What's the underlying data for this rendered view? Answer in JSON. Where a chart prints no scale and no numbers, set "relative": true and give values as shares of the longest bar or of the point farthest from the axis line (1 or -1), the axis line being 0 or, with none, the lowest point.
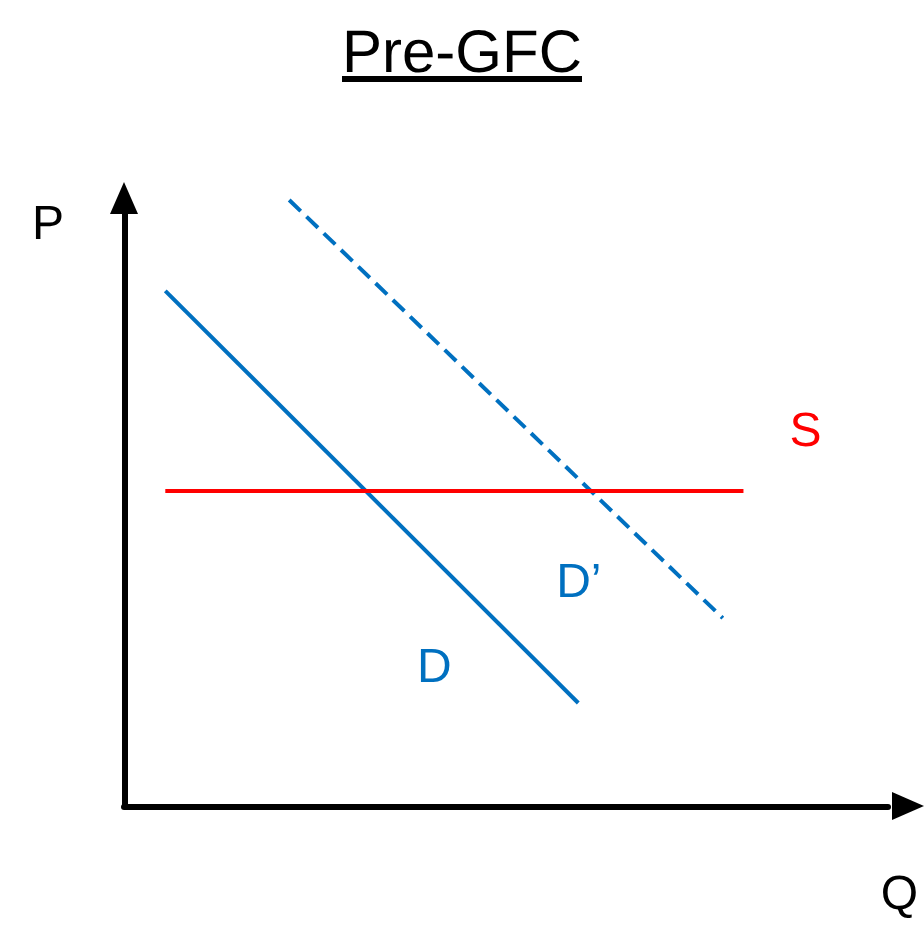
{
  "chart_data": {
    "type": "line",
    "title": "Pre-GFC",
    "xlabel": "Q",
    "ylabel": "P",
    "relative": true,
    "marker": "none",
    "categories": [
      null,
      null,
      null,
      null,
      null,
      null,
      null,
      null,
      null,
      null,
      null,
      null,
      null,
      null,
      null,
      null,
      null,
      null,
      null,
      null,
      null,
      null,
      null,
      null,
      null,
      null,
      null,
      null,
      null,
      null,
      null,
      null,
      null,
      null,
      null,
      null,
      null,
      null
    ],
    "series": [
      {
        "name": "D",
        "color": "#0070c0",
        "values": [
          null,
          null,
          0.85,
          null,
          null,
          null,
          null,
          null,
          null,
          null,
          null,
          null,
          null,
          null,
          null,
          null,
          null,
          null,
          null,
          null,
          null,
          null,
          0.17,
          null,
          null,
          null,
          null,
          null,
          null,
          null,
          null,
          null,
          null,
          null,
          null,
          null,
          null,
          null
        ],
        "line_style": "solid"
      },
      {
        "name": "D’",
        "color": "#0070c0",
        "values": [
          null,
          null,
          null,
          null,
          null,
          null,
          null,
          null,
          1,
          null,
          null,
          null,
          null,
          null,
          null,
          null,
          null,
          null,
          null,
          null,
          null,
          null,
          null,
          null,
          null,
          null,
          null,
          null,
          null,
          0.31,
          null,
          null,
          null,
          null,
          null,
          null,
          null,
          null
        ],
        "line_style": "dashed"
      },
      {
        "name": "S",
        "color": "#ff0000",
        "values": [
          null,
          null,
          0.52,
          null,
          null,
          null,
          null,
          null,
          null,
          null,
          null,
          null,
          null,
          null,
          null,
          null,
          null,
          null,
          null,
          null,
          null,
          null,
          null,
          null,
          null,
          null,
          null,
          null,
          null,
          null,
          0.52,
          null,
          null,
          null,
          null,
          null,
          null,
          null
        ],
        "line_style": "solid"
      }
    ]
  }
}
